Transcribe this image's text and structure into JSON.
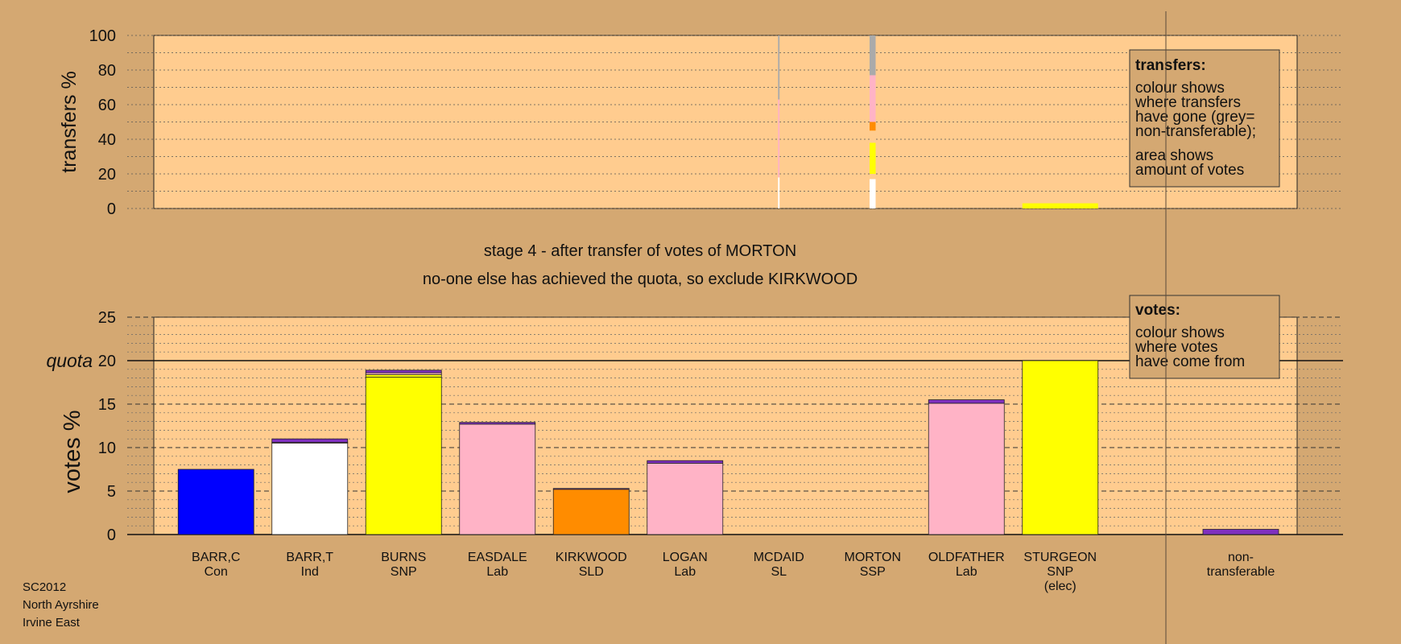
{
  "colors": {
    "page_bg": "#d4a872",
    "plot_bg": "#ffcc8f",
    "con": "#0000ff",
    "ind": "#ffffff",
    "snp": "#ffff00",
    "lab": "#ffb3c6",
    "sld": "#ff8c00",
    "purple": "#7f2fbf",
    "grey": "#aaaaaa"
  },
  "chart_data": [
    {
      "type": "bar",
      "panel": "transfers",
      "ylabel": "transfers %",
      "ylim": [
        0,
        100
      ],
      "yticks": [
        0,
        20,
        40,
        60,
        80,
        100
      ],
      "grid": true,
      "legend_placement": "top-right",
      "legend": {
        "title": "transfers:",
        "lines1": [
          "colour shows",
          "where transfers",
          "have gone (grey=",
          "non-transferable);"
        ],
        "lines2": [
          "area shows",
          "amount of votes"
        ]
      },
      "columns": [
        {
          "candidate": "MCDAID",
          "width_share": 0.02,
          "segments": [
            {
              "party_color": "ind",
              "from": 0,
              "to": 18
            },
            {
              "party_color": "lab",
              "from": 18,
              "to": 63
            },
            {
              "party_color": "grey",
              "from": 63,
              "to": 100
            }
          ]
        },
        {
          "candidate": "MORTON",
          "width_share": 0.08,
          "segments": [
            {
              "party_color": "ind",
              "from": 0,
              "to": 17
            },
            {
              "party_color": "plot_bg",
              "from": 17,
              "to": 20
            },
            {
              "party_color": "snp",
              "from": 20,
              "to": 38
            },
            {
              "party_color": "plot_bg",
              "from": 38,
              "to": 45
            },
            {
              "party_color": "sld",
              "from": 45,
              "to": 50
            },
            {
              "party_color": "lab",
              "from": 50,
              "to": 77
            },
            {
              "party_color": "grey",
              "from": 77,
              "to": 100
            }
          ]
        },
        {
          "candidate": "STURGEON",
          "width_share": 1.0,
          "segments": [
            {
              "party_color": "snp",
              "from": 0,
              "to": 3
            }
          ]
        }
      ]
    },
    {
      "type": "bar",
      "panel": "votes",
      "ylabel": "votes %",
      "ylim": [
        0,
        25
      ],
      "yticks": [
        0,
        5,
        10,
        15,
        20,
        25
      ],
      "quota": 20,
      "quota_label": "quota",
      "grid": true,
      "legend_placement": "top-right",
      "legend": {
        "title": "votes:",
        "lines": [
          "colour shows",
          "where votes",
          "have come from"
        ]
      },
      "categories": [
        {
          "name": "BARR,C",
          "party": "Con",
          "note": ""
        },
        {
          "name": "BARR,T",
          "party": "Ind",
          "note": ""
        },
        {
          "name": "BURNS",
          "party": "SNP",
          "note": ""
        },
        {
          "name": "EASDALE",
          "party": "Lab",
          "note": ""
        },
        {
          "name": "KIRKWOOD",
          "party": "SLD",
          "note": ""
        },
        {
          "name": "LOGAN",
          "party": "Lab",
          "note": ""
        },
        {
          "name": "MCDAID",
          "party": "SL",
          "note": ""
        },
        {
          "name": "MORTON",
          "party": "SSP",
          "note": ""
        },
        {
          "name": "OLDFATHER",
          "party": "Lab",
          "note": ""
        },
        {
          "name": "STURGEON",
          "party": "SNP",
          "note": "(elec)"
        }
      ],
      "stacks": [
        [
          {
            "color": "con",
            "value": 7.5
          }
        ],
        [
          {
            "color": "ind",
            "value": 10.5
          },
          {
            "color": "lab",
            "value": 0.1
          },
          {
            "color": "purple",
            "value": 0.4
          }
        ],
        [
          {
            "color": "snp",
            "value": 18.1
          },
          {
            "color": "snp",
            "value": 0.3
          },
          {
            "color": "lab",
            "value": 0.2
          },
          {
            "color": "purple",
            "value": 0.3
          }
        ],
        [
          {
            "color": "lab",
            "value": 12.7
          },
          {
            "color": "purple",
            "value": 0.2
          }
        ],
        [
          {
            "color": "sld",
            "value": 5.2
          },
          {
            "color": "purple",
            "value": 0.1
          }
        ],
        [
          {
            "color": "lab",
            "value": 8.2
          },
          {
            "color": "purple",
            "value": 0.3
          }
        ],
        [],
        [],
        [
          {
            "color": "lab",
            "value": 15.1
          },
          {
            "color": "purple",
            "value": 0.4
          }
        ],
        [
          {
            "color": "snp",
            "value": 20.0
          }
        ]
      ],
      "nontransferable": {
        "label_lines": [
          "non-",
          "transferable"
        ],
        "stack": [
          {
            "color": "purple",
            "value": 0.6
          }
        ]
      }
    }
  ],
  "stage_title": "stage 4 - after transfer of votes of MORTON",
  "stage_subtitle": "no-one else has achieved the quota, so exclude KIRKWOOD",
  "footer": [
    "SC2012",
    "North Ayrshire",
    "Irvine East"
  ]
}
